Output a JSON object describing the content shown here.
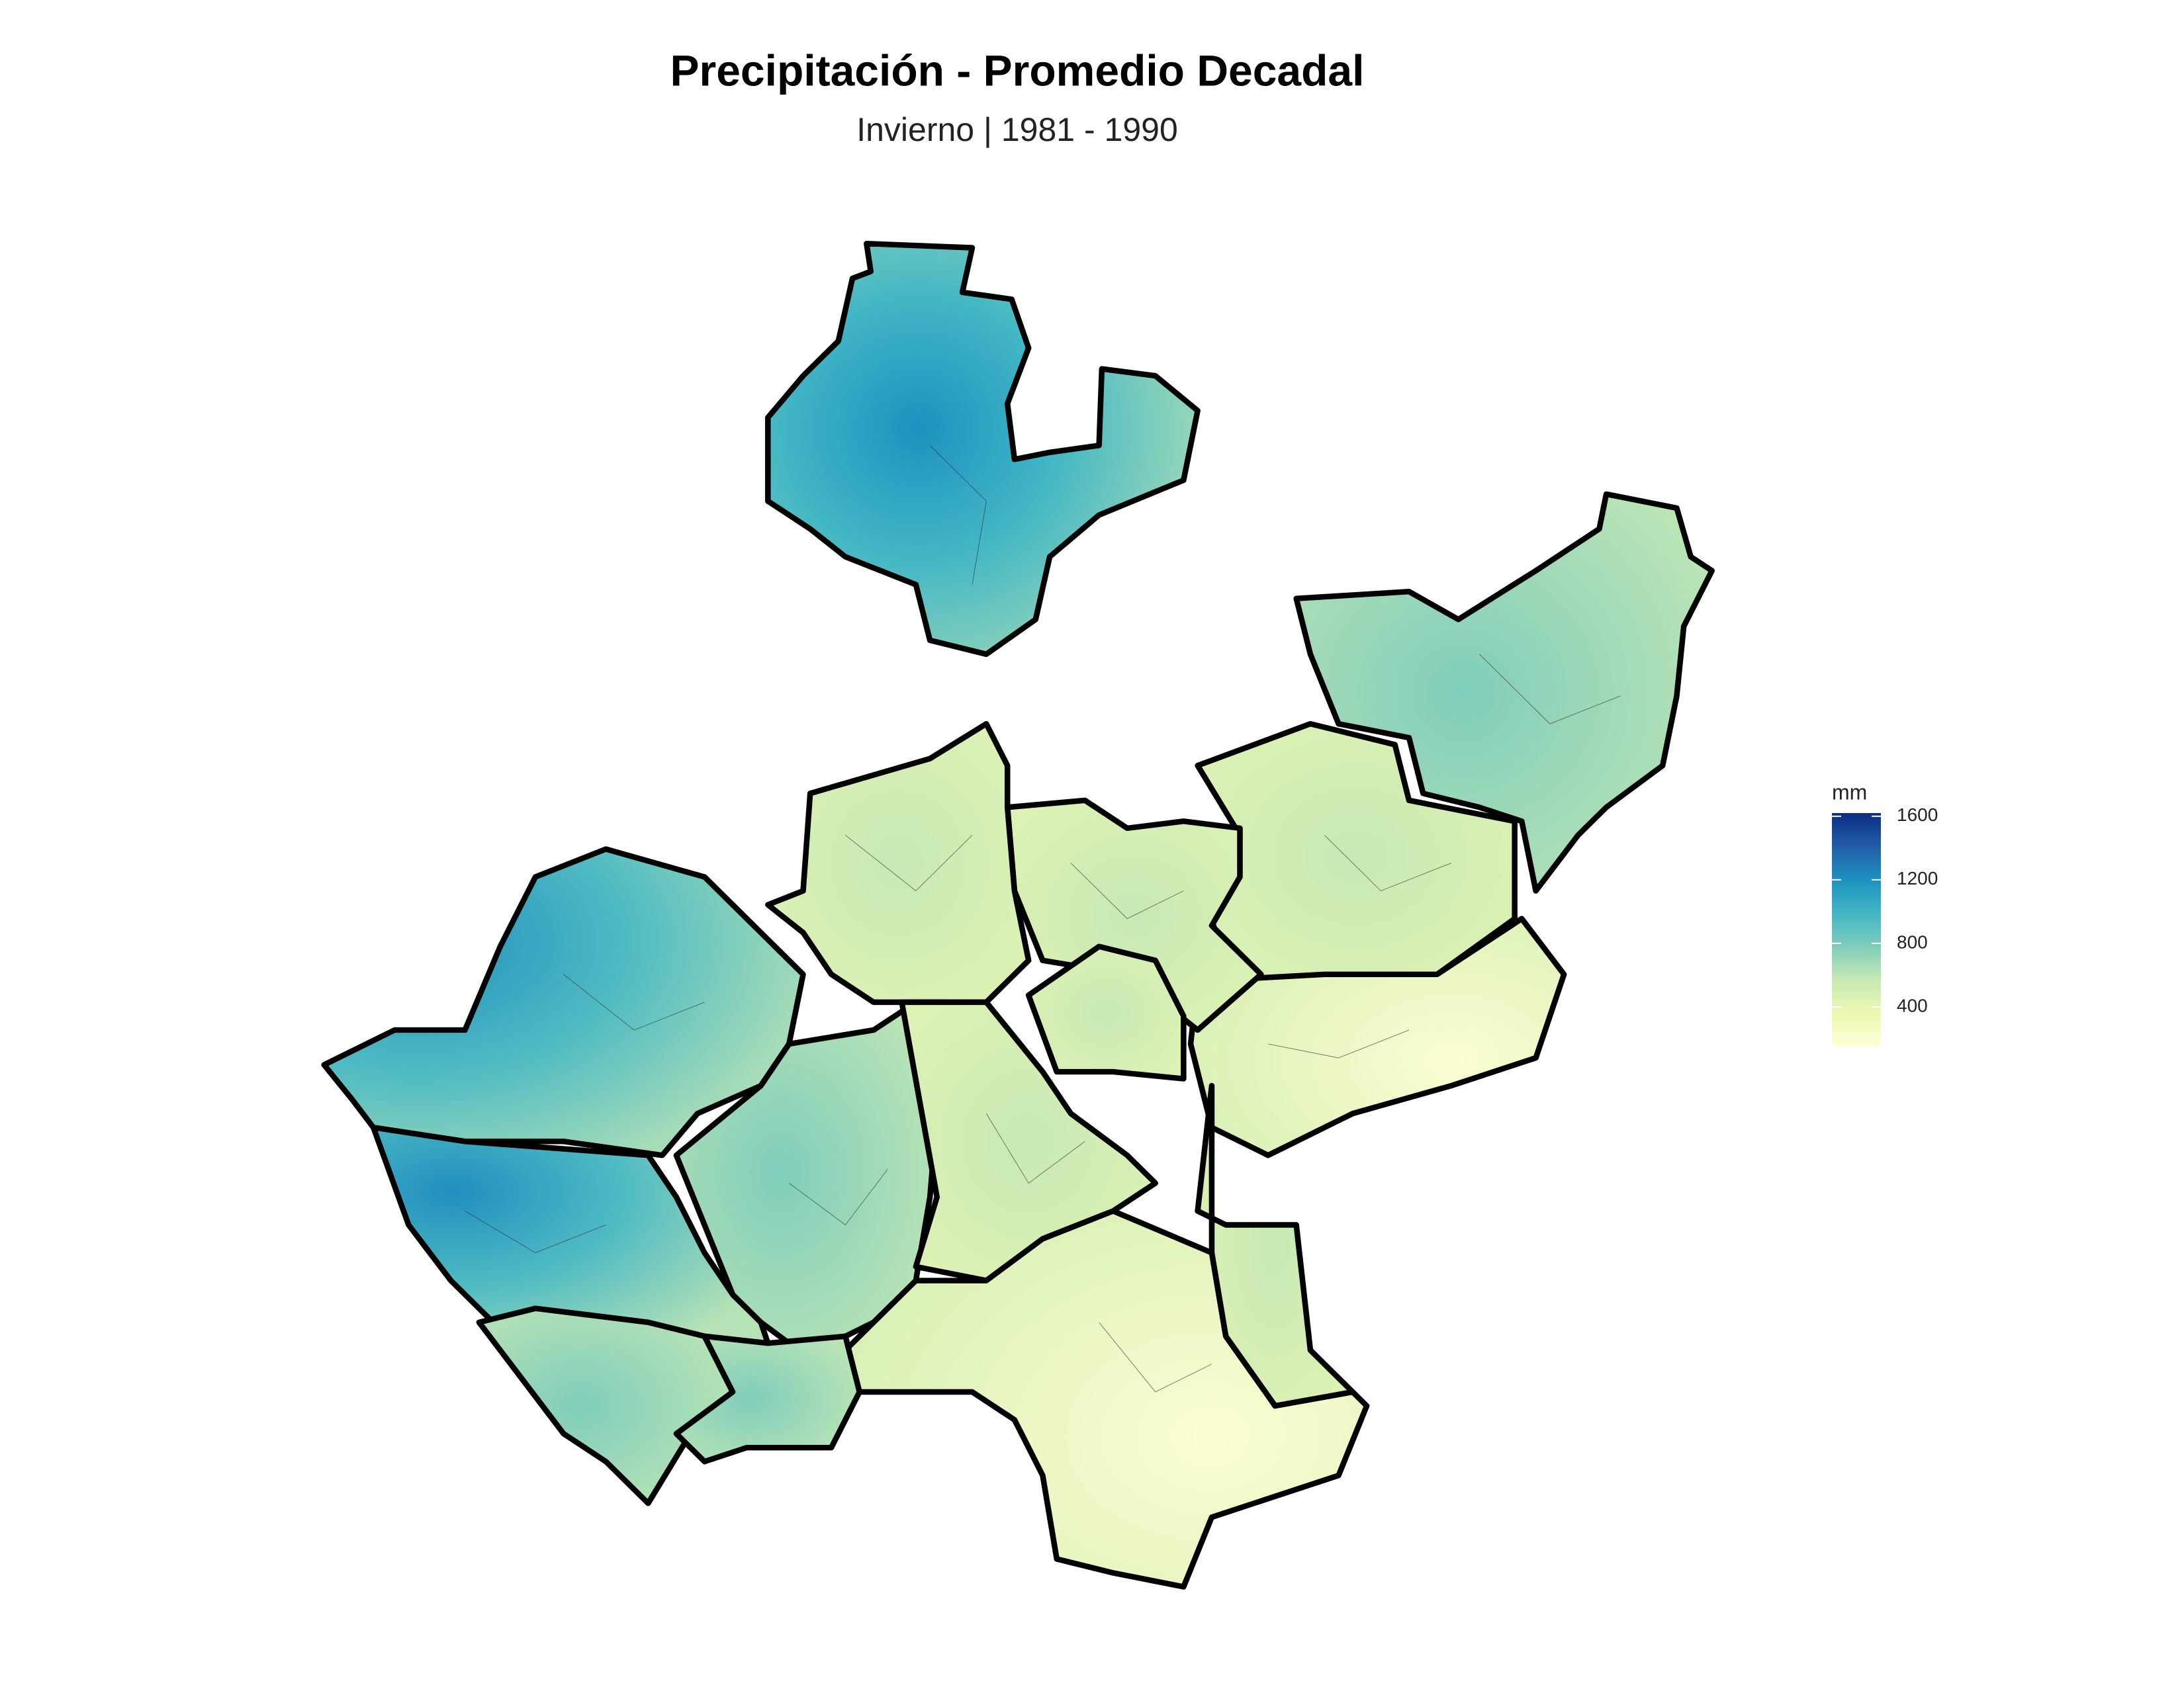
{
  "title": "Precipitación - Promedio Decadal",
  "subtitle": "Invierno | 1981 - 1990",
  "legend": {
    "title": "mm",
    "range": [
      150,
      1620
    ],
    "ticks": [
      400,
      800,
      1200,
      1600
    ],
    "colors": [
      "#ffffd9",
      "#edf8b1",
      "#c7e9b4",
      "#7fcdbb",
      "#41b6c4",
      "#1d91c0",
      "#225ea8",
      "#0c2c84"
    ]
  }
}
